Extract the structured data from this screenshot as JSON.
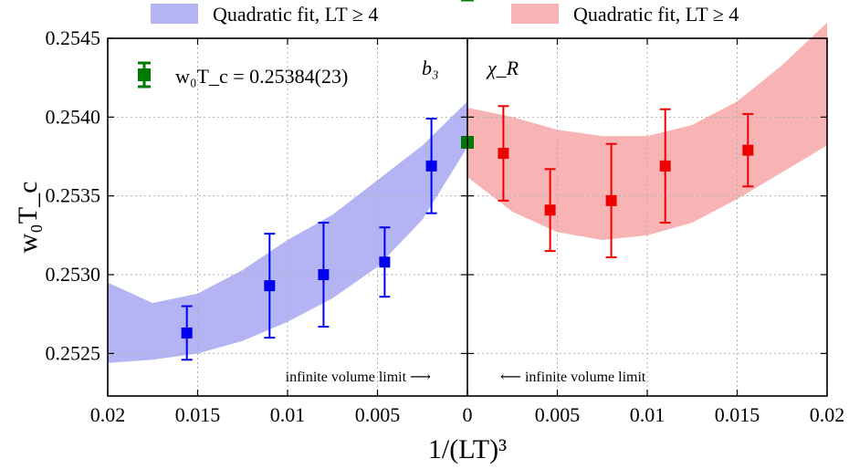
{
  "chart_data": {
    "type": "scatter",
    "xlabel": "1/(LT)³",
    "ylabel": "w₀T_c",
    "ylim": [
      0.25223,
      0.2545
    ],
    "grid": true,
    "legend_position": "top",
    "legend": [
      {
        "label": "Quadratic fit, LT ≥ 4",
        "color": "#b4b4f5"
      },
      {
        "label": "Quadratic fit, LT ≥ 4",
        "color": "#f8b4b4"
      }
    ],
    "y_ticks": [
      "0.2525",
      "0.2530",
      "0.2535",
      "0.2540",
      "0.2545"
    ],
    "y_tick_values": [
      0.2525,
      0.253,
      0.2535,
      0.254,
      0.2545
    ],
    "result_label": "w₀T_c = 0.25384(23)",
    "result": {
      "value": 0.25384,
      "error": 0.00023,
      "color": "#007a00"
    },
    "panels": [
      {
        "label": "b₃",
        "xlim": [
          0.02,
          0
        ],
        "x_ticks": [
          "0.02",
          "0.015",
          "0.01",
          "0.005",
          "0"
        ],
        "x_tick_values": [
          0.02,
          0.015,
          0.01,
          0.005,
          0
        ],
        "annotation": "infinite volume limit ⟶",
        "series": {
          "color": "#0000ee",
          "points": [
            {
              "x": 0.0156,
              "y": 0.25263,
              "err": 0.00017
            },
            {
              "x": 0.011,
              "y": 0.25293,
              "err": 0.00033
            },
            {
              "x": 0.008,
              "y": 0.253,
              "err": 0.00033
            },
            {
              "x": 0.0046,
              "y": 0.25308,
              "err": 0.00022
            },
            {
              "x": 0.002,
              "y": 0.25369,
              "err": 0.0003
            }
          ]
        },
        "band": {
          "color": "#b4b4f5",
          "x": [
            0.02,
            0.0175,
            0.015,
            0.0125,
            0.01,
            0.0075,
            0.005,
            0.0025,
            0.0
          ],
          "upper": [
            0.25295,
            0.25282,
            0.25288,
            0.25303,
            0.25322,
            0.25338,
            0.2536,
            0.25382,
            0.2541
          ],
          "lower": [
            0.25244,
            0.25246,
            0.2525,
            0.25258,
            0.2527,
            0.25285,
            0.25305,
            0.25335,
            0.25381
          ]
        }
      },
      {
        "label": "χ_R",
        "xlim": [
          0,
          0.02
        ],
        "x_ticks": [
          "0",
          "0.005",
          "0.01",
          "0.015",
          "0.02"
        ],
        "x_tick_values": [
          0,
          0.005,
          0.01,
          0.015,
          0.02
        ],
        "annotation": "⟵ infinite volume limit",
        "series": {
          "color": "#ee0000",
          "points": [
            {
              "x": 0.002,
              "y": 0.25377,
              "err": 0.0003
            },
            {
              "x": 0.0046,
              "y": 0.25341,
              "err": 0.00026
            },
            {
              "x": 0.008,
              "y": 0.25347,
              "err": 0.00036
            },
            {
              "x": 0.011,
              "y": 0.25369,
              "err": 0.00036
            },
            {
              "x": 0.0156,
              "y": 0.25379,
              "err": 0.00023
            }
          ]
        },
        "band": {
          "color": "#f8b4b4",
          "x": [
            0.0,
            0.0025,
            0.005,
            0.0075,
            0.01,
            0.0125,
            0.015,
            0.0175,
            0.02
          ],
          "upper": [
            0.25406,
            0.254,
            0.25392,
            0.25388,
            0.25388,
            0.25395,
            0.2541,
            0.25433,
            0.2546
          ],
          "lower": [
            0.25362,
            0.2534,
            0.25327,
            0.25322,
            0.25325,
            0.25333,
            0.25348,
            0.25365,
            0.25382
          ]
        }
      }
    ]
  }
}
